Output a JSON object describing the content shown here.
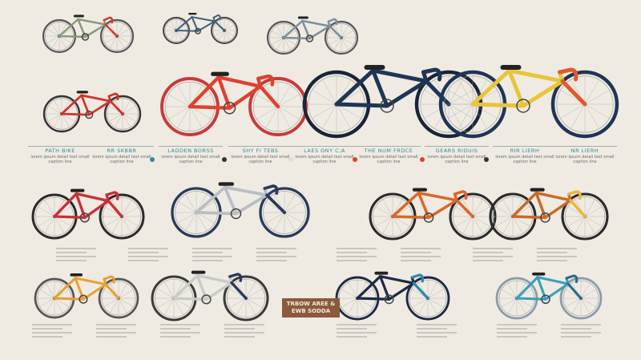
{
  "background": "#efebe3",
  "bikes": [
    {
      "frame": "#8a9a7a",
      "accent": "#d23a2e",
      "tire": "#555"
    },
    {
      "frame": "#3d5f7a",
      "accent": "#3d5f7a",
      "tire": "#444"
    },
    {
      "frame": "#7f8f9a",
      "accent": "#7f8f9a",
      "tire": "#555"
    },
    {
      "frame": "#d2332a",
      "accent": "#d2332a",
      "tire": "#333"
    },
    {
      "frame": "#e0402f",
      "accent": "#e0402f",
      "tire": "#c83a3a"
    },
    {
      "frame": "#1e3557",
      "accent": "#1e3557",
      "tire": "#1a2438"
    },
    {
      "frame": "#e8c53a",
      "accent": "#e05a2a",
      "tire": "#1e3557"
    },
    {
      "frame": "#c8303a",
      "accent": "#c8303a",
      "tire": "#2a2a2a"
    },
    {
      "frame": "#b8bec4",
      "accent": "#2a3a5a",
      "tire": "#2a3a5a"
    },
    {
      "frame": "#d8682a",
      "accent": "#d8682a",
      "tire": "#2a2a2a"
    },
    {
      "frame": "#c86a2a",
      "accent": "#e8b83a",
      "tire": "#2a2a2a"
    },
    {
      "frame": "#e8a030",
      "accent": "#e8a030",
      "tire": "#555"
    },
    {
      "frame": "#c8ccc8",
      "accent": "#2a3a5a",
      "tire": "#3a3a3a"
    },
    {
      "frame": "#1e2a44",
      "accent": "#2a8aa8",
      "tire": "#1e2a44"
    },
    {
      "frame": "#3aa0b8",
      "accent": "#2a6a8a",
      "tire": "#8a9aa8"
    }
  ],
  "labels": [
    {
      "title": "PATH BIKE",
      "text": "lorem ipsum detail text small caption line"
    },
    {
      "title": "RR SKBBR",
      "text": "lorem ipsum detail text small caption line"
    },
    {
      "title": "LADDEN BORSS",
      "text": "lorem ipsum detail text small caption line"
    },
    {
      "title": "SHY FI TEBS",
      "text": "lorem ipsum detail text small caption line"
    },
    {
      "title": "LAES ONY C;A",
      "text": "lorem ipsum detail text small caption line"
    },
    {
      "title": "THE NUM FRDCE",
      "text": "lorem ipsum detail text small caption line"
    },
    {
      "title": "GEARS RIDUIS",
      "text": "lorem ipsum detail text small caption line"
    },
    {
      "title": "RIR LIERH",
      "text": "lorem ipsum detail text small caption line"
    },
    {
      "title": "NR LIERH",
      "text": "lorem ipsum detail text small caption line"
    }
  ],
  "badge": "TRBOW AREE & EWB SODDA",
  "dot_colors": [
    "#2f8a9a",
    "#333",
    "#ddd",
    "#e0402f",
    "#e0402f",
    "#333"
  ]
}
